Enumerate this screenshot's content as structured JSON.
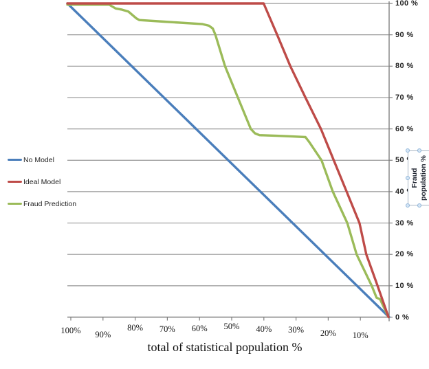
{
  "chart_data": {
    "type": "line",
    "title": "",
    "xlabel": "total of statistical population %",
    "ylabel": "Fraud population %",
    "ylabel_lines": [
      "Fraud",
      "population %"
    ],
    "grid": "horizontal",
    "legend": {
      "position": "left"
    },
    "x_axis": {
      "direction": "reversed",
      "range": [
        100,
        0
      ],
      "tick_values": [
        100,
        90,
        80,
        70,
        60,
        50,
        40,
        30,
        20,
        10
      ],
      "tick_labels": [
        "100%",
        "90%",
        "80%",
        "70%",
        "60%",
        "50%",
        "40%",
        "30%",
        "20%",
        "10%"
      ]
    },
    "y_axis": {
      "side": "right",
      "range": [
        0,
        100
      ],
      "tick_values": [
        100,
        90,
        80,
        70,
        60,
        50,
        40,
        30,
        20,
        10,
        0
      ],
      "tick_labels": [
        "100 %",
        "90 %",
        "80 %",
        "70 %",
        "60 %",
        "50 %",
        "40 %",
        "30 %",
        "20 %",
        "10 %",
        "0 %"
      ]
    },
    "series": [
      {
        "name": "No Model",
        "color": "#4A7EBB",
        "points": [
          [
            100,
            100
          ],
          [
            0,
            0
          ]
        ]
      },
      {
        "name": "Ideal Model",
        "color": "#BE4B48",
        "points": [
          [
            100,
            100
          ],
          [
            39,
            100
          ],
          [
            34.8,
            90
          ],
          [
            30.7,
            80
          ],
          [
            26,
            70
          ],
          [
            21.2,
            60
          ],
          [
            17.2,
            50
          ],
          [
            13.2,
            40
          ],
          [
            9.2,
            30
          ],
          [
            7.1,
            20
          ],
          [
            3.6,
            10
          ],
          [
            0.2,
            0
          ]
        ]
      },
      {
        "name": "Fraud Prediction",
        "color": "#9BBB59",
        "points": [
          [
            100,
            99.6
          ],
          [
            87,
            99.6
          ],
          [
            85,
            98.4
          ],
          [
            83,
            98
          ],
          [
            81,
            97.4
          ],
          [
            78.5,
            95.2
          ],
          [
            77.6,
            94.7
          ],
          [
            70,
            94.2
          ],
          [
            58,
            93.4
          ],
          [
            56,
            92.9
          ],
          [
            54.8,
            92
          ],
          [
            54,
            90
          ],
          [
            51,
            80
          ],
          [
            47,
            70
          ],
          [
            43,
            60
          ],
          [
            41.7,
            58.6
          ],
          [
            40.3,
            58
          ],
          [
            35,
            57.8
          ],
          [
            30,
            57.6
          ],
          [
            26,
            57.4
          ],
          [
            24.8,
            55.8
          ],
          [
            21,
            50
          ],
          [
            17.5,
            40
          ],
          [
            13,
            30
          ],
          [
            10.1,
            20
          ],
          [
            5.4,
            10
          ],
          [
            3.9,
            6.2
          ],
          [
            2.8,
            5.7
          ],
          [
            0.2,
            0
          ]
        ]
      }
    ]
  },
  "colors": {
    "gridline": "#969696",
    "axis": "#7F7F7F",
    "background": "#FFFFFF"
  }
}
